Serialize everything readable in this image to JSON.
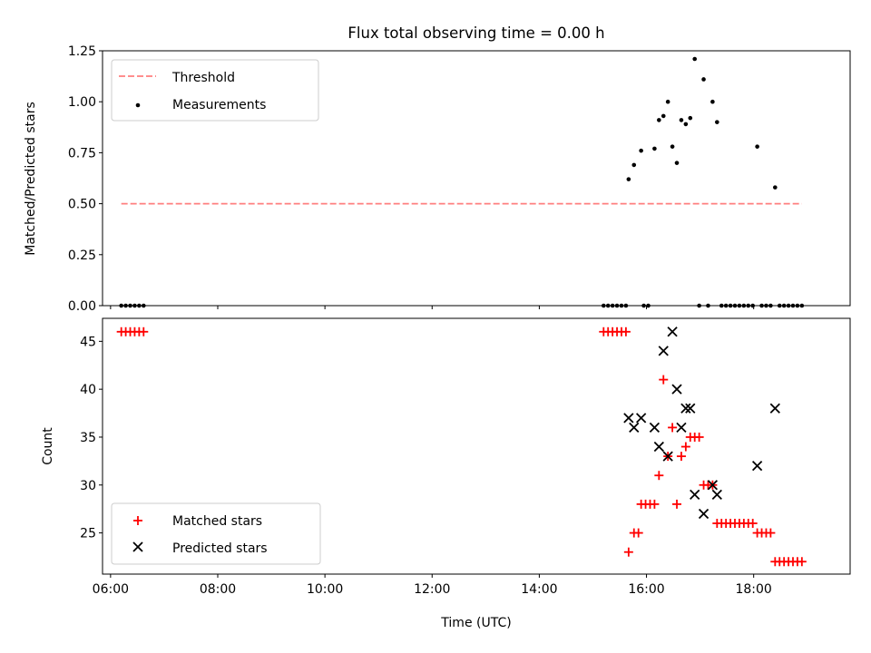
{
  "title": "Flux total observing time = 0.00 h",
  "chart_data": [
    {
      "type": "scatter",
      "panel": "top",
      "ylabel": "Matched/Predicted stars",
      "xlim": [
        "05:51",
        "19:48"
      ],
      "ylim": [
        0,
        1.25
      ],
      "yticks": [
        "0.00",
        "0.25",
        "0.50",
        "0.75",
        "1.00",
        "1.25"
      ],
      "legend_position": "upper-left",
      "legend": [
        "Threshold",
        "Measurements"
      ],
      "threshold": {
        "name": "Threshold",
        "y": 0.5,
        "x_start": "06:12",
        "x_end": "18:54",
        "color": "#ff7f7f",
        "style": "dashed"
      },
      "measurements": {
        "name": "Measurements",
        "color": "#000000",
        "points": [
          {
            "t": "06:12",
            "y": 0
          },
          {
            "t": "06:17",
            "y": 0
          },
          {
            "t": "06:22",
            "y": 0
          },
          {
            "t": "06:27",
            "y": 0
          },
          {
            "t": "06:32",
            "y": 0
          },
          {
            "t": "06:37",
            "y": 0
          },
          {
            "t": "15:12",
            "y": 0
          },
          {
            "t": "15:17",
            "y": 0
          },
          {
            "t": "15:22",
            "y": 0
          },
          {
            "t": "15:27",
            "y": 0
          },
          {
            "t": "15:32",
            "y": 0
          },
          {
            "t": "15:37",
            "y": 0
          },
          {
            "t": "15:40",
            "y": 0.62
          },
          {
            "t": "15:46",
            "y": 0.69
          },
          {
            "t": "15:54",
            "y": 0.76
          },
          {
            "t": "15:57",
            "y": 0
          },
          {
            "t": "16:02",
            "y": 0
          },
          {
            "t": "16:09",
            "y": 0.77
          },
          {
            "t": "16:14",
            "y": 0.91
          },
          {
            "t": "16:19",
            "y": 0.93
          },
          {
            "t": "16:24",
            "y": 1.0
          },
          {
            "t": "16:29",
            "y": 0.78
          },
          {
            "t": "16:34",
            "y": 0.7
          },
          {
            "t": "16:39",
            "y": 0.91
          },
          {
            "t": "16:44",
            "y": 0.89
          },
          {
            "t": "16:49",
            "y": 0.92
          },
          {
            "t": "16:54",
            "y": 1.21
          },
          {
            "t": "16:59",
            "y": 0
          },
          {
            "t": "17:04",
            "y": 1.11
          },
          {
            "t": "17:09",
            "y": 0
          },
          {
            "t": "17:14",
            "y": 1.0
          },
          {
            "t": "17:19",
            "y": 0.9
          },
          {
            "t": "17:24",
            "y": 0
          },
          {
            "t": "17:29",
            "y": 0
          },
          {
            "t": "17:34",
            "y": 0
          },
          {
            "t": "17:39",
            "y": 0
          },
          {
            "t": "17:44",
            "y": 0
          },
          {
            "t": "17:49",
            "y": 0
          },
          {
            "t": "17:54",
            "y": 0
          },
          {
            "t": "17:59",
            "y": 0
          },
          {
            "t": "18:04",
            "y": 0.78
          },
          {
            "t": "18:09",
            "y": 0
          },
          {
            "t": "18:14",
            "y": 0
          },
          {
            "t": "18:19",
            "y": 0
          },
          {
            "t": "18:24",
            "y": 0.58
          },
          {
            "t": "18:29",
            "y": 0
          },
          {
            "t": "18:34",
            "y": 0
          },
          {
            "t": "18:39",
            "y": 0
          },
          {
            "t": "18:44",
            "y": 0
          },
          {
            "t": "18:49",
            "y": 0
          },
          {
            "t": "18:54",
            "y": 0
          }
        ]
      }
    },
    {
      "type": "scatter",
      "panel": "bottom",
      "xlabel": "Time (UTC)",
      "ylabel": "Count",
      "xlim": [
        "05:51",
        "19:48"
      ],
      "ylim": [
        20.7,
        47.4
      ],
      "xticks": [
        "06:00",
        "08:00",
        "10:00",
        "12:00",
        "14:00",
        "16:00",
        "18:00"
      ],
      "yticks": [
        "25",
        "30",
        "35",
        "40",
        "45"
      ],
      "legend_position": "lower-left",
      "legend": [
        "Matched stars",
        "Predicted stars"
      ],
      "series": [
        {
          "name": "Matched stars",
          "marker": "+",
          "color": "#ff0000",
          "points": [
            {
              "t": "06:12",
              "y": 46
            },
            {
              "t": "06:17",
              "y": 46
            },
            {
              "t": "06:22",
              "y": 46
            },
            {
              "t": "06:27",
              "y": 46
            },
            {
              "t": "06:32",
              "y": 46
            },
            {
              "t": "06:37",
              "y": 46
            },
            {
              "t": "15:12",
              "y": 46
            },
            {
              "t": "15:17",
              "y": 46
            },
            {
              "t": "15:22",
              "y": 46
            },
            {
              "t": "15:27",
              "y": 46
            },
            {
              "t": "15:32",
              "y": 46
            },
            {
              "t": "15:37",
              "y": 46
            },
            {
              "t": "15:40",
              "y": 23
            },
            {
              "t": "15:46",
              "y": 25
            },
            {
              "t": "15:51",
              "y": 25
            },
            {
              "t": "15:54",
              "y": 28
            },
            {
              "t": "15:59",
              "y": 28
            },
            {
              "t": "16:04",
              "y": 28
            },
            {
              "t": "16:09",
              "y": 28
            },
            {
              "t": "16:14",
              "y": 31
            },
            {
              "t": "16:19",
              "y": 41
            },
            {
              "t": "16:24",
              "y": 33
            },
            {
              "t": "16:29",
              "y": 36
            },
            {
              "t": "16:34",
              "y": 28
            },
            {
              "t": "16:39",
              "y": 33
            },
            {
              "t": "16:44",
              "y": 34
            },
            {
              "t": "16:49",
              "y": 35
            },
            {
              "t": "16:54",
              "y": 35
            },
            {
              "t": "16:59",
              "y": 35
            },
            {
              "t": "17:04",
              "y": 30
            },
            {
              "t": "17:09",
              "y": 30
            },
            {
              "t": "17:14",
              "y": 30
            },
            {
              "t": "17:19",
              "y": 26
            },
            {
              "t": "17:24",
              "y": 26
            },
            {
              "t": "17:29",
              "y": 26
            },
            {
              "t": "17:34",
              "y": 26
            },
            {
              "t": "17:39",
              "y": 26
            },
            {
              "t": "17:44",
              "y": 26
            },
            {
              "t": "17:49",
              "y": 26
            },
            {
              "t": "17:54",
              "y": 26
            },
            {
              "t": "17:59",
              "y": 26
            },
            {
              "t": "18:04",
              "y": 25
            },
            {
              "t": "18:09",
              "y": 25
            },
            {
              "t": "18:14",
              "y": 25
            },
            {
              "t": "18:19",
              "y": 25
            },
            {
              "t": "18:24",
              "y": 22
            },
            {
              "t": "18:29",
              "y": 22
            },
            {
              "t": "18:34",
              "y": 22
            },
            {
              "t": "18:39",
              "y": 22
            },
            {
              "t": "18:44",
              "y": 22
            },
            {
              "t": "18:49",
              "y": 22
            },
            {
              "t": "18:54",
              "y": 22
            }
          ]
        },
        {
          "name": "Predicted stars",
          "marker": "x",
          "color": "#000000",
          "points": [
            {
              "t": "15:40",
              "y": 37
            },
            {
              "t": "15:46",
              "y": 36
            },
            {
              "t": "15:54",
              "y": 37
            },
            {
              "t": "16:09",
              "y": 36
            },
            {
              "t": "16:14",
              "y": 34
            },
            {
              "t": "16:19",
              "y": 44
            },
            {
              "t": "16:24",
              "y": 33
            },
            {
              "t": "16:29",
              "y": 46
            },
            {
              "t": "16:34",
              "y": 40
            },
            {
              "t": "16:39",
              "y": 36
            },
            {
              "t": "16:44",
              "y": 38
            },
            {
              "t": "16:49",
              "y": 38
            },
            {
              "t": "16:54",
              "y": 29
            },
            {
              "t": "17:04",
              "y": 27
            },
            {
              "t": "17:14",
              "y": 30
            },
            {
              "t": "17:19",
              "y": 29
            },
            {
              "t": "18:04",
              "y": 32
            },
            {
              "t": "18:24",
              "y": 38
            }
          ]
        }
      ]
    }
  ]
}
